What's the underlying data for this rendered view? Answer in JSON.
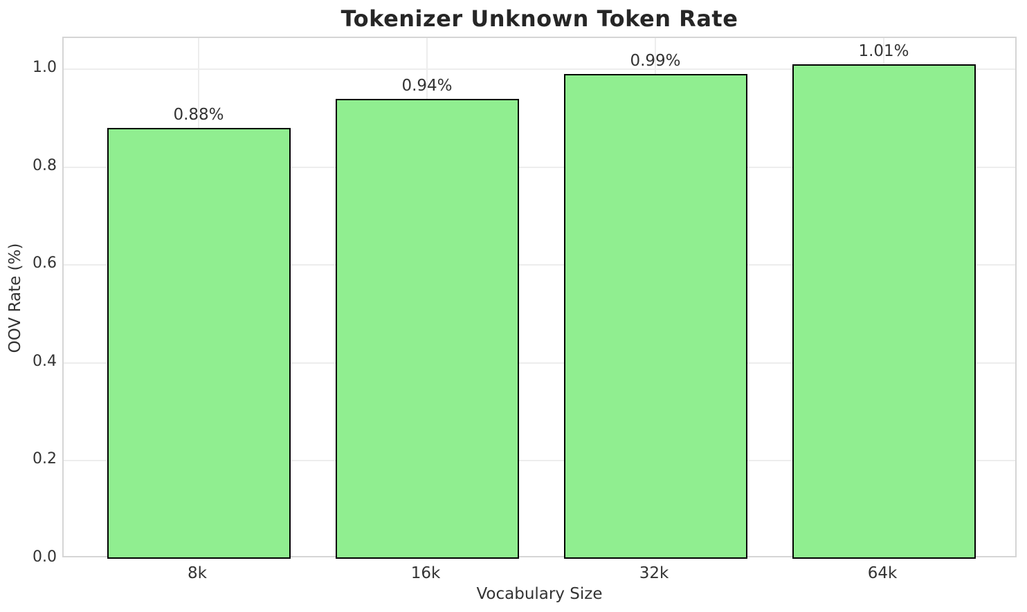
{
  "chart_data": {
    "type": "bar",
    "title": "Tokenizer Unknown Token Rate",
    "xlabel": "Vocabulary Size",
    "ylabel": "OOV Rate (%)",
    "categories": [
      "8k",
      "16k",
      "32k",
      "64k"
    ],
    "values": [
      0.88,
      0.94,
      0.99,
      1.01
    ],
    "bar_labels": [
      "0.88%",
      "0.94%",
      "0.99%",
      "1.01%"
    ],
    "ytick_values": [
      0.0,
      0.2,
      0.4,
      0.6,
      0.8,
      1.0
    ],
    "ytick_labels": [
      "0.0",
      "0.2",
      "0.4",
      "0.6",
      "0.8",
      "1.0"
    ],
    "ylim": [
      0,
      1.064
    ],
    "grid": true,
    "legend": "none",
    "bar_color": "#90EE90",
    "bar_edge_color": "#000000",
    "title_color": "#262626",
    "text_color": "#333333"
  }
}
